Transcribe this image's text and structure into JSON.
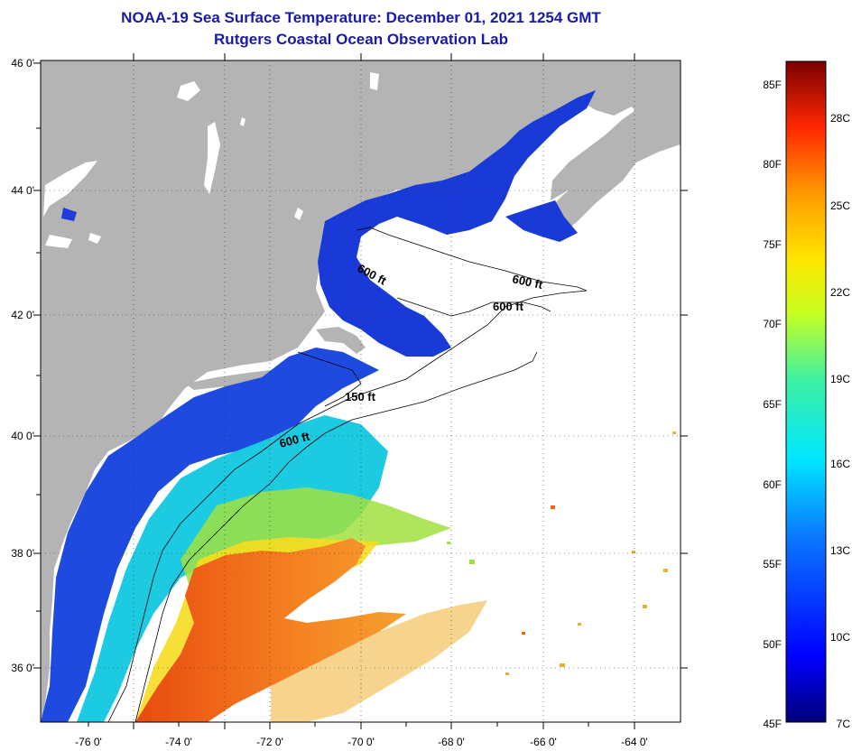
{
  "title": {
    "line1": "NOAA-19 Sea Surface Temperature:  December 01, 2021 1254 GMT",
    "line2": "Rutgers Coastal Ocean Observation Lab"
  },
  "map": {
    "lon_labels": [
      "-76 0'",
      "-74 0'",
      "-72 0'",
      "-70 0'",
      "-68 0'",
      "-66 0'",
      "-64 0'"
    ],
    "lat_labels": [
      "46 0'",
      "44 0'",
      "42 0'",
      "40 0'",
      "38 0'",
      "36 0'"
    ],
    "contour_labels": [
      "600 ft",
      "600 ft",
      "600 ft",
      "150 ft",
      "600 ft"
    ],
    "colors": {
      "land": "#b4b4b4",
      "cloud": "#ffffff",
      "cold": "#1e3cdc",
      "warm": "#f06414"
    }
  },
  "colorbar": {
    "f_labels": [
      "85F",
      "80F",
      "75F",
      "70F",
      "65F",
      "60F",
      "55F",
      "50F",
      "45F"
    ],
    "c_labels": [
      "28C",
      "25C",
      "22C",
      "19C",
      "16C",
      "13C",
      "10C",
      "7C"
    ]
  }
}
